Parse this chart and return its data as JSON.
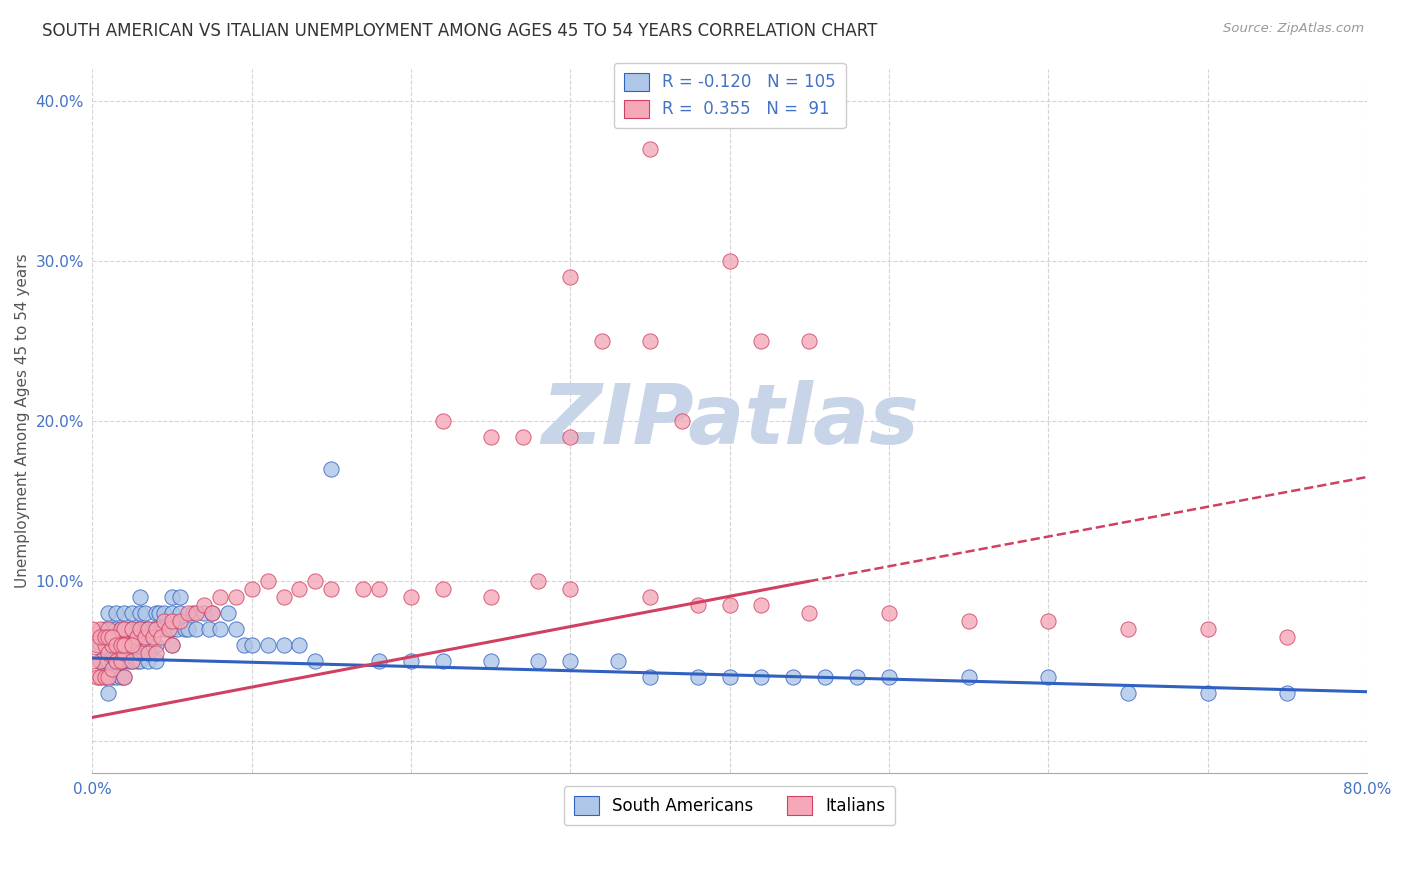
{
  "title": "SOUTH AMERICAN VS ITALIAN UNEMPLOYMENT AMONG AGES 45 TO 54 YEARS CORRELATION CHART",
  "source": "Source: ZipAtlas.com",
  "ylabel": "Unemployment Among Ages 45 to 54 years",
  "xlim": [
    0.0,
    0.8
  ],
  "ylim": [
    -0.02,
    0.42
  ],
  "xticks": [
    0.0,
    0.1,
    0.2,
    0.3,
    0.4,
    0.5,
    0.6,
    0.7,
    0.8
  ],
  "xticklabels": [
    "0.0%",
    "",
    "",
    "",
    "",
    "",
    "",
    "",
    "80.0%"
  ],
  "yticks": [
    0.0,
    0.1,
    0.2,
    0.3,
    0.4
  ],
  "yticklabels": [
    "",
    "10.0%",
    "20.0%",
    "30.0%",
    "40.0%"
  ],
  "blue_R": -0.12,
  "blue_N": 105,
  "pink_R": 0.355,
  "pink_N": 91,
  "blue_color": "#aec6e8",
  "pink_color": "#f4a8b8",
  "blue_line_color": "#3060c0",
  "pink_line_color": "#d04060",
  "grid_color": "#d0d0d0",
  "watermark_color": "#c8d4e8",
  "background_color": "#ffffff",
  "title_fontsize": 12,
  "label_fontsize": 11,
  "tick_fontsize": 11,
  "legend_fontsize": 12,
  "blue_trend_x0": 0.0,
  "blue_trend_y0": 0.052,
  "blue_trend_x1": 0.8,
  "blue_trend_y1": 0.031,
  "pink_trend_solid_x0": 0.0,
  "pink_trend_solid_y0": 0.015,
  "pink_trend_solid_x1": 0.45,
  "pink_trend_solid_y1": 0.1,
  "pink_trend_dash_x0": 0.45,
  "pink_trend_dash_y0": 0.1,
  "pink_trend_dash_x1": 0.8,
  "pink_trend_dash_y1": 0.165,
  "blue_scatter_x": [
    0.005,
    0.005,
    0.005,
    0.008,
    0.008,
    0.008,
    0.01,
    0.01,
    0.01,
    0.01,
    0.012,
    0.012,
    0.012,
    0.012,
    0.015,
    0.015,
    0.015,
    0.015,
    0.015,
    0.018,
    0.018,
    0.018,
    0.018,
    0.02,
    0.02,
    0.02,
    0.02,
    0.02,
    0.02,
    0.023,
    0.023,
    0.023,
    0.025,
    0.025,
    0.025,
    0.025,
    0.028,
    0.028,
    0.028,
    0.03,
    0.03,
    0.03,
    0.03,
    0.03,
    0.033,
    0.033,
    0.033,
    0.035,
    0.035,
    0.035,
    0.038,
    0.038,
    0.04,
    0.04,
    0.04,
    0.04,
    0.042,
    0.042,
    0.045,
    0.045,
    0.048,
    0.05,
    0.05,
    0.05,
    0.05,
    0.053,
    0.055,
    0.055,
    0.058,
    0.06,
    0.063,
    0.065,
    0.07,
    0.073,
    0.075,
    0.08,
    0.085,
    0.09,
    0.095,
    0.1,
    0.11,
    0.12,
    0.13,
    0.14,
    0.15,
    0.18,
    0.2,
    0.22,
    0.25,
    0.28,
    0.3,
    0.33,
    0.35,
    0.38,
    0.4,
    0.42,
    0.44,
    0.46,
    0.48,
    0.5,
    0.55,
    0.6,
    0.65,
    0.7,
    0.75
  ],
  "blue_scatter_y": [
    0.06,
    0.05,
    0.04,
    0.07,
    0.05,
    0.04,
    0.08,
    0.06,
    0.05,
    0.03,
    0.07,
    0.06,
    0.05,
    0.04,
    0.08,
    0.07,
    0.06,
    0.05,
    0.04,
    0.07,
    0.06,
    0.05,
    0.04,
    0.08,
    0.07,
    0.06,
    0.055,
    0.05,
    0.04,
    0.07,
    0.06,
    0.05,
    0.08,
    0.07,
    0.06,
    0.05,
    0.07,
    0.06,
    0.05,
    0.09,
    0.08,
    0.07,
    0.06,
    0.05,
    0.08,
    0.07,
    0.06,
    0.07,
    0.06,
    0.05,
    0.07,
    0.06,
    0.08,
    0.07,
    0.06,
    0.05,
    0.08,
    0.07,
    0.08,
    0.07,
    0.07,
    0.09,
    0.08,
    0.07,
    0.06,
    0.07,
    0.09,
    0.08,
    0.07,
    0.07,
    0.08,
    0.07,
    0.08,
    0.07,
    0.08,
    0.07,
    0.08,
    0.07,
    0.06,
    0.06,
    0.06,
    0.06,
    0.06,
    0.05,
    0.17,
    0.05,
    0.05,
    0.05,
    0.05,
    0.05,
    0.05,
    0.05,
    0.04,
    0.04,
    0.04,
    0.04,
    0.04,
    0.04,
    0.04,
    0.04,
    0.04,
    0.04,
    0.03,
    0.03,
    0.03
  ],
  "pink_scatter_x": [
    0.003,
    0.003,
    0.005,
    0.005,
    0.005,
    0.008,
    0.008,
    0.01,
    0.01,
    0.01,
    0.012,
    0.012,
    0.015,
    0.015,
    0.018,
    0.018,
    0.02,
    0.02,
    0.02,
    0.023,
    0.025,
    0.025,
    0.028,
    0.03,
    0.03,
    0.033,
    0.035,
    0.035,
    0.038,
    0.04,
    0.04,
    0.043,
    0.045,
    0.048,
    0.05,
    0.05,
    0.055,
    0.06,
    0.065,
    0.07,
    0.075,
    0.08,
    0.09,
    0.1,
    0.11,
    0.12,
    0.13,
    0.14,
    0.15,
    0.17,
    0.18,
    0.2,
    0.22,
    0.25,
    0.28,
    0.3,
    0.35,
    0.38,
    0.4,
    0.42,
    0.45,
    0.5,
    0.55,
    0.6,
    0.65,
    0.7,
    0.75,
    0.35,
    0.4,
    0.42,
    0.45,
    0.3,
    0.32,
    0.35,
    0.37,
    0.22,
    0.25,
    0.27,
    0.3,
    0.0,
    0.0,
    0.005,
    0.008,
    0.01,
    0.012,
    0.015,
    0.018,
    0.02,
    0.025
  ],
  "pink_scatter_y": [
    0.06,
    0.04,
    0.07,
    0.05,
    0.04,
    0.06,
    0.04,
    0.07,
    0.055,
    0.04,
    0.06,
    0.045,
    0.065,
    0.05,
    0.07,
    0.05,
    0.07,
    0.055,
    0.04,
    0.06,
    0.07,
    0.05,
    0.065,
    0.07,
    0.055,
    0.065,
    0.07,
    0.055,
    0.065,
    0.07,
    0.055,
    0.065,
    0.075,
    0.07,
    0.075,
    0.06,
    0.075,
    0.08,
    0.08,
    0.085,
    0.08,
    0.09,
    0.09,
    0.095,
    0.1,
    0.09,
    0.095,
    0.1,
    0.095,
    0.095,
    0.095,
    0.09,
    0.095,
    0.09,
    0.1,
    0.095,
    0.09,
    0.085,
    0.085,
    0.085,
    0.08,
    0.08,
    0.075,
    0.075,
    0.07,
    0.07,
    0.065,
    0.37,
    0.3,
    0.25,
    0.25,
    0.29,
    0.25,
    0.25,
    0.2,
    0.2,
    0.19,
    0.19,
    0.19,
    0.07,
    0.05,
    0.065,
    0.065,
    0.065,
    0.065,
    0.06,
    0.06,
    0.06,
    0.06
  ]
}
